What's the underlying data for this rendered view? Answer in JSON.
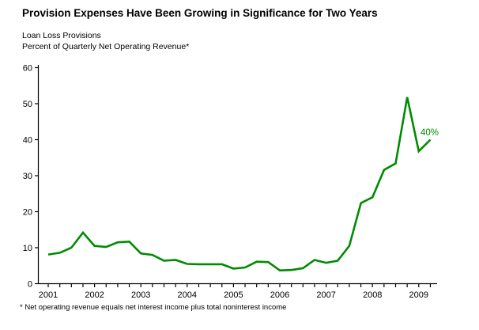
{
  "title": "Provision Expenses Have Been Growing in Significance for Two Years",
  "subtitle_line1": "Loan Loss Provisions",
  "subtitle_line2": "Percent of Quarterly Net Operating Revenue*",
  "footnote": "* Net operating revenue equals net interest income plus total noninterest income",
  "colors": {
    "line": "#008B00",
    "axis": "#000000",
    "text": "#000000",
    "background": "#ffffff"
  },
  "chart_data": {
    "type": "line",
    "title": "Loan Loss Provisions",
    "subtitle": "Percent of Quarterly Net Operating Revenue*",
    "xlabel": "",
    "ylabel": "Percent of Quarterly Net Operating Revenue*",
    "ylim": [
      0,
      60
    ],
    "yticks": [
      0,
      10,
      20,
      30,
      40,
      50,
      60
    ],
    "grid": false,
    "legend_position": "none",
    "x": [
      "2001Q1",
      "2001Q2",
      "2001Q3",
      "2001Q4",
      "2002Q1",
      "2002Q2",
      "2002Q3",
      "2002Q4",
      "2003Q1",
      "2003Q2",
      "2003Q3",
      "2003Q4",
      "2004Q1",
      "2004Q2",
      "2004Q3",
      "2004Q4",
      "2005Q1",
      "2005Q2",
      "2005Q3",
      "2005Q4",
      "2006Q1",
      "2006Q2",
      "2006Q3",
      "2006Q4",
      "2007Q1",
      "2007Q2",
      "2007Q3",
      "2007Q4",
      "2008Q1",
      "2008Q2",
      "2008Q3",
      "2008Q4",
      "2009Q1",
      "2009Q2"
    ],
    "x_year_labels": [
      "2001",
      "2002",
      "2003",
      "2004",
      "2005",
      "2006",
      "2007",
      "2008",
      "2009"
    ],
    "series": [
      {
        "name": "Loan Loss Provisions (% of quarterly net operating revenue)",
        "color": "#008B00",
        "values": [
          8.1,
          8.6,
          10.0,
          14.2,
          10.5,
          10.2,
          11.5,
          11.7,
          8.4,
          8.0,
          6.4,
          6.6,
          5.5,
          5.4,
          5.4,
          5.4,
          4.2,
          4.5,
          6.1,
          6.0,
          3.7,
          3.8,
          4.3,
          6.6,
          5.8,
          6.4,
          10.5,
          22.4,
          24.0,
          31.6,
          33.4,
          51.8,
          36.8,
          40.0
        ]
      }
    ],
    "end_label": "40%"
  }
}
